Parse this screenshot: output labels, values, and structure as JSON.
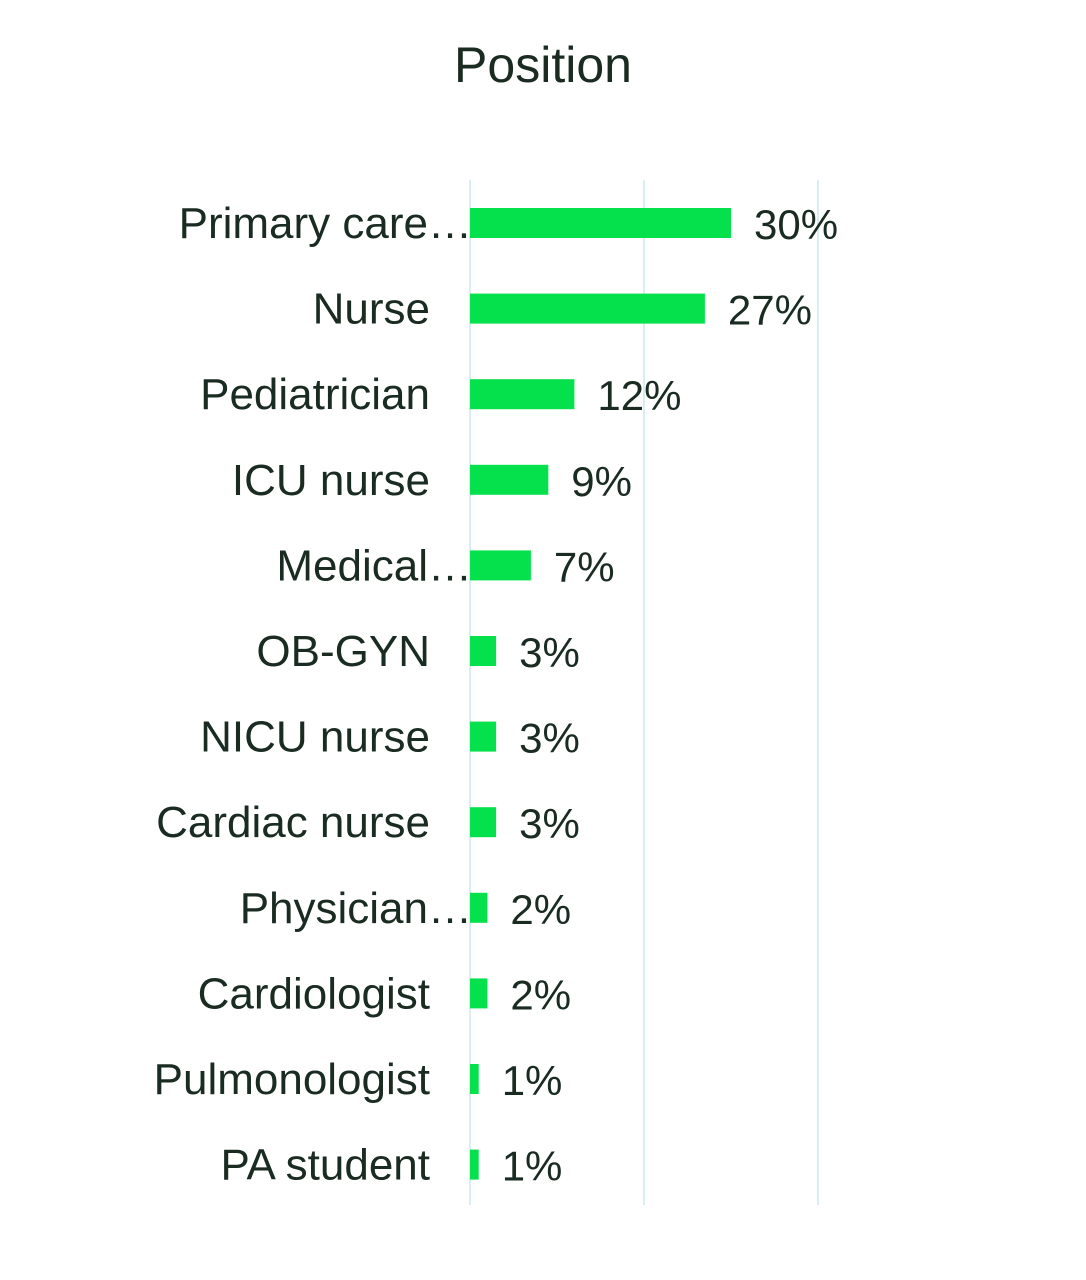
{
  "chart_data": {
    "type": "bar",
    "orientation": "horizontal",
    "title": "Position",
    "categories": [
      "Primary care…",
      "Nurse",
      "Pediatrician",
      "ICU nurse",
      "Medical…",
      "OB-GYN",
      "NICU nurse",
      "Cardiac nurse",
      "Physician…",
      "Cardiologist",
      "Pulmonologist",
      "PA student"
    ],
    "values": [
      30,
      27,
      12,
      9,
      7,
      3,
      3,
      3,
      2,
      2,
      1,
      1
    ],
    "value_labels": [
      "30%",
      "27%",
      "12%",
      "9%",
      "7%",
      "3%",
      "3%",
      "3%",
      "2%",
      "2%",
      "1%",
      "1%"
    ],
    "unit": "%",
    "xlim": [
      0,
      40
    ],
    "gridlines": [
      0,
      20,
      40
    ],
    "grid": true,
    "legend": "none",
    "xlabel": "",
    "ylabel": ""
  },
  "colors": {
    "bar": "#05e04d",
    "grid": "#d9eef2",
    "text": "#1a2b22"
  }
}
